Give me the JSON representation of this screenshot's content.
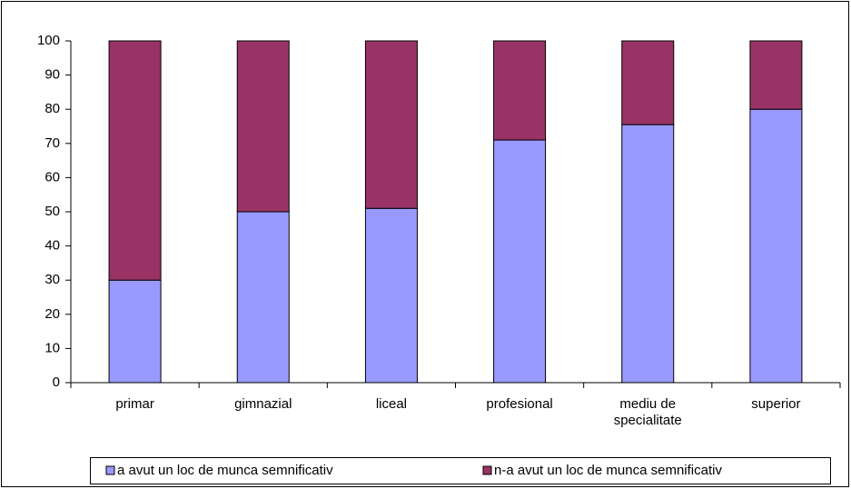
{
  "chart_data": {
    "type": "stacked_bar",
    "categories": [
      "primar",
      "gimnazial",
      "liceal",
      "profesional",
      "mediu de specialitate",
      "superior"
    ],
    "series": [
      {
        "name": "a avut un loc de munca semnificativ",
        "color": "#9999ff",
        "values": [
          30,
          50,
          51,
          71,
          75.5,
          80
        ]
      },
      {
        "name": "n-a avut un loc de munca semnificativ",
        "color": "#993366",
        "values": [
          70,
          50,
          49,
          29,
          24.5,
          20
        ]
      }
    ],
    "ylim": [
      0,
      100
    ],
    "yticks": [
      0,
      10,
      20,
      30,
      40,
      50,
      60,
      70,
      80,
      90,
      100
    ],
    "legend": "bottom"
  }
}
